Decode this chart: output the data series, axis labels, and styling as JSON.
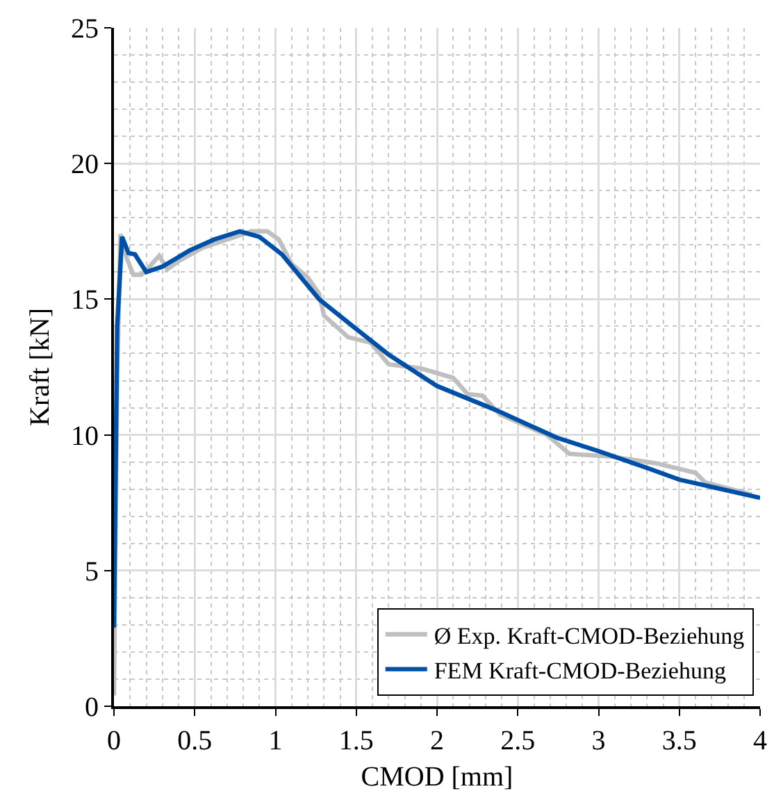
{
  "chart_data": {
    "type": "line",
    "xlabel": "CMOD [mm]",
    "ylabel": "Kraft [kN]",
    "xlim": [
      0,
      4
    ],
    "ylim": [
      0,
      25
    ],
    "xticks": [
      0,
      0.5,
      1,
      1.5,
      2,
      2.5,
      3,
      3.5,
      4
    ],
    "yticks": [
      0,
      5,
      10,
      15,
      20,
      25
    ],
    "grid": true,
    "legend": "bottom right",
    "marker": "none",
    "line_style": "solid",
    "series": [
      {
        "name": "Ø Exp. Kraft-CMOD-Beziehung",
        "color": "#bfbfbf",
        "x": [
          0,
          0.02,
          0.04,
          0.08,
          0.12,
          0.17,
          0.22,
          0.28,
          0.33,
          0.4,
          0.55,
          0.75,
          0.85,
          0.95,
          1.02,
          1.1,
          1.2,
          1.27,
          1.3,
          1.45,
          1.59,
          1.7,
          1.9,
          2.1,
          2.19,
          2.28,
          2.39,
          2.68,
          2.82,
          3.08,
          3.36,
          3.6,
          3.66,
          3.95
        ],
        "values": [
          0.4,
          12,
          17.4,
          16.5,
          15.9,
          15.9,
          16.2,
          16.6,
          16.1,
          16.4,
          16.9,
          17.3,
          17.5,
          17.5,
          17.2,
          16.3,
          15.8,
          15.2,
          14.4,
          13.6,
          13.4,
          12.6,
          12.45,
          12.1,
          11.5,
          11.45,
          10.75,
          10.0,
          9.3,
          9.2,
          8.95,
          8.6,
          8.25,
          7.8
        ]
      },
      {
        "name": "FEM Kraft-CMOD-Beziehung",
        "color": "#0050a8",
        "x": [
          0,
          0.02,
          0.05,
          0.09,
          0.13,
          0.2,
          0.3,
          0.47,
          0.62,
          0.78,
          0.9,
          1.04,
          1.27,
          1.5,
          1.7,
          2,
          2.37,
          2.74,
          3,
          3.31,
          3.5,
          4
        ],
        "values": [
          2.9,
          14,
          17.3,
          16.7,
          16.65,
          16.0,
          16.2,
          16.8,
          17.2,
          17.5,
          17.3,
          16.65,
          15.0,
          13.9,
          12.96,
          11.8,
          10.9,
          9.9,
          9.4,
          8.76,
          8.35,
          7.68
        ]
      }
    ]
  }
}
